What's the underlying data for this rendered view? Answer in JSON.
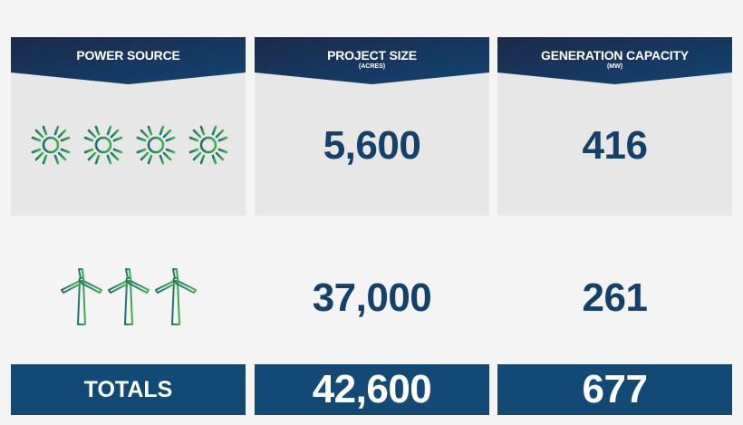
{
  "table": {
    "columns": [
      {
        "title": "POWER SOURCE"
      },
      {
        "title": "PROJECT SIZE",
        "subtitle": "(ACRES)"
      },
      {
        "title": "GENERATION CAPACITY",
        "subtitle": "(MW)"
      }
    ],
    "rows": [
      [
        "5,600",
        "416"
      ],
      [
        "37,000",
        "261"
      ]
    ],
    "totals": {
      "label": "TOTALS",
      "values": [
        "42,600",
        "677"
      ]
    }
  }
}
